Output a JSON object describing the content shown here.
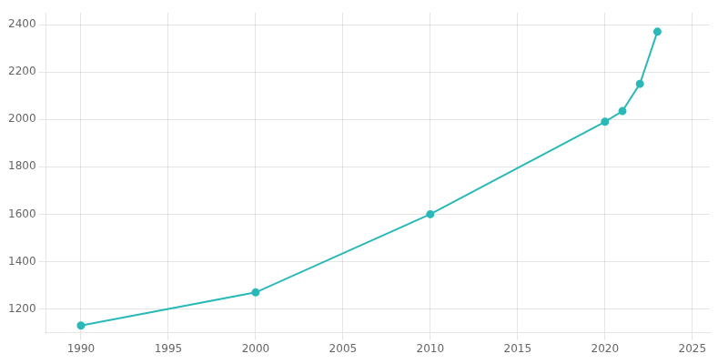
{
  "chart_data": {
    "type": "line",
    "x": [
      1990,
      2000,
      2010,
      2020,
      2021,
      2022,
      2023
    ],
    "values": [
      1130,
      1270,
      1600,
      1990,
      2035,
      2150,
      2370
    ],
    "color": "#2ab8b8",
    "marker": "circle",
    "xlim": [
      1988,
      2026
    ],
    "ylim": [
      1100,
      2450
    ],
    "xticks": [
      1990,
      1995,
      2000,
      2005,
      2010,
      2015,
      2020,
      2025
    ],
    "yticks": [
      1200,
      1400,
      1600,
      1800,
      2000,
      2200,
      2400
    ],
    "grid": true
  }
}
